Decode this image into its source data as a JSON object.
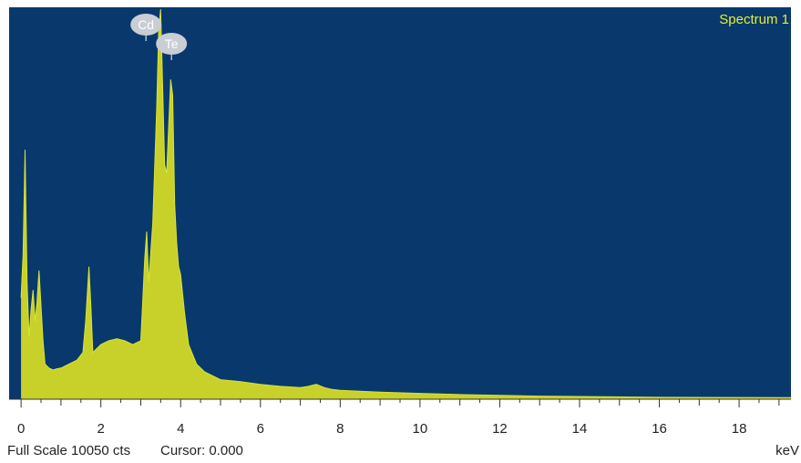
{
  "chart_data": {
    "type": "area",
    "legend": "Spectrum 1",
    "legend_position": "top-right",
    "xlabel": "keV",
    "xlim": [
      -0.3,
      19.3
    ],
    "x_ticks": [
      0,
      2,
      4,
      6,
      8,
      10,
      12,
      14,
      16,
      18
    ],
    "ylim": [
      0,
      10050
    ],
    "footer": {
      "full_scale": "Full Scale 10050 cts",
      "cursor": "Cursor: 0.000"
    },
    "colors": {
      "plot_background": "#08386c",
      "spectrum_fill": "#c7d12a",
      "legend_text": "#e8f02a",
      "marker_fill": "#c9cdd4"
    },
    "peak_markers": [
      {
        "label": "Cd",
        "x": 3.13
      },
      {
        "label": "Te",
        "x": 3.77
      }
    ],
    "series": [
      {
        "x": [
          0.0,
          0.05,
          0.1,
          0.15,
          0.2,
          0.25,
          0.3,
          0.35,
          0.4,
          0.45,
          0.5,
          0.55,
          0.6,
          0.7,
          0.8,
          0.9,
          1.0,
          1.2,
          1.4,
          1.55,
          1.62,
          1.7,
          1.75,
          1.8,
          1.9,
          2.0,
          2.2,
          2.4,
          2.6,
          2.8,
          3.0,
          3.05,
          3.1,
          3.15,
          3.2,
          3.3,
          3.4,
          3.45,
          3.5,
          3.55,
          3.6,
          3.65,
          3.7,
          3.75,
          3.8,
          3.85,
          3.9,
          3.95,
          4.0,
          4.1,
          4.2,
          4.4,
          4.6,
          4.8,
          5.0,
          5.5,
          6.0,
          6.5,
          7.0,
          7.2,
          7.4,
          7.6,
          7.8,
          8.0,
          9.0,
          10.0,
          11.0,
          12.0,
          13.0,
          14.0,
          16.0,
          19.3
        ],
        "y": [
          2600,
          3700,
          6400,
          3000,
          1600,
          2300,
          2800,
          2000,
          2500,
          3300,
          2400,
          1500,
          900,
          800,
          750,
          780,
          800,
          900,
          1000,
          1200,
          2000,
          3400,
          2400,
          1200,
          1300,
          1400,
          1500,
          1550,
          1500,
          1400,
          1500,
          2500,
          3600,
          4300,
          3000,
          4500,
          7500,
          9500,
          10000,
          8000,
          6000,
          5800,
          7000,
          8200,
          7800,
          5000,
          4000,
          3400,
          3200,
          2200,
          1400,
          900,
          700,
          600,
          500,
          450,
          380,
          330,
          300,
          330,
          380,
          300,
          250,
          230,
          180,
          150,
          120,
          100,
          80,
          70,
          50,
          40
        ]
      }
    ]
  }
}
